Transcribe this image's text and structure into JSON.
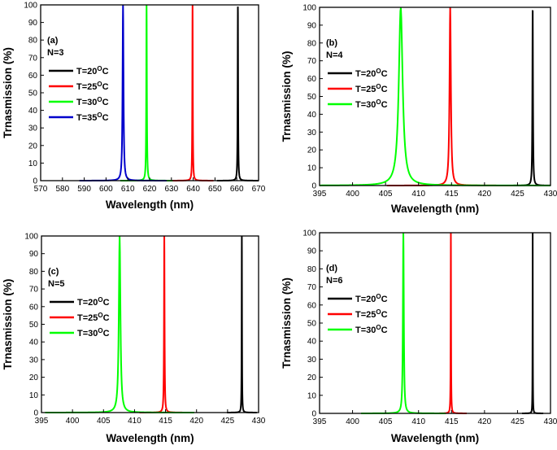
{
  "chart_data": [
    {
      "type": "line",
      "panel_label": "(a)",
      "n_label": "N=3",
      "xlabel": "Wavelength (nm)",
      "ylabel": "Trnasmission (%)",
      "xlim": [
        570,
        670
      ],
      "ylim": [
        0,
        100
      ],
      "xticks": [
        570,
        580,
        590,
        600,
        610,
        620,
        630,
        640,
        650,
        660,
        670
      ],
      "yticks": [
        0,
        10,
        20,
        30,
        40,
        50,
        60,
        70,
        80,
        90,
        100
      ],
      "legend_position": "upper-left",
      "series": [
        {
          "name": "T=20",
          "deg": "O",
          "unit": "C",
          "color": "#000000",
          "peak": 660.5,
          "width": 0.12
        },
        {
          "name": "T=25",
          "deg": "O",
          "unit": "C",
          "color": "#ff0000",
          "peak": 639.7,
          "width": 0.12
        },
        {
          "name": "T=30",
          "deg": "O",
          "unit": "C",
          "color": "#00ff00",
          "peak": 618.6,
          "width": 0.15
        },
        {
          "name": "T=35",
          "deg": "O",
          "unit": "C",
          "color": "#0000cc",
          "peak": 607.8,
          "width": 0.25
        }
      ]
    },
    {
      "type": "line",
      "panel_label": "(b)",
      "n_label": "N=4",
      "xlabel": "Wavelength (nm)",
      "ylabel": "Trnasmission (%)",
      "xlim": [
        395,
        430
      ],
      "ylim": [
        0,
        100
      ],
      "xticks": [
        395,
        400,
        405,
        410,
        415,
        420,
        425,
        430
      ],
      "yticks": [
        0,
        10,
        20,
        30,
        40,
        50,
        60,
        70,
        80,
        90,
        100
      ],
      "legend_position": "upper-left",
      "series": [
        {
          "name": "T=20",
          "deg": "O",
          "unit": "C",
          "color": "#000000",
          "peak": 427.3,
          "width": 0.05
        },
        {
          "name": "T=25",
          "deg": "O",
          "unit": "C",
          "color": "#ff0000",
          "peak": 414.8,
          "width": 0.12
        },
        {
          "name": "T=30",
          "deg": "O",
          "unit": "C",
          "color": "#00ff00",
          "peak": 407.3,
          "width": 0.35
        }
      ]
    },
    {
      "type": "line",
      "panel_label": "(c)",
      "n_label": "N=5",
      "xlabel": "Wavelength (nm)",
      "ylabel": "Trnasmission (%)",
      "xlim": [
        395,
        430
      ],
      "ylim": [
        0,
        100
      ],
      "xticks": [
        395,
        400,
        405,
        410,
        415,
        420,
        425,
        430
      ],
      "yticks": [
        0,
        10,
        20,
        30,
        40,
        50,
        60,
        70,
        80,
        90,
        100
      ],
      "legend_position": "upper-left",
      "series": [
        {
          "name": "T=20",
          "deg": "O",
          "unit": "C",
          "color": "#000000",
          "peak": 427.3,
          "width": 0.03
        },
        {
          "name": "T=25",
          "deg": "O",
          "unit": "C",
          "color": "#ff0000",
          "peak": 414.8,
          "width": 0.05
        },
        {
          "name": "T=30",
          "deg": "O",
          "unit": "C",
          "color": "#00ff00",
          "peak": 407.6,
          "width": 0.15
        }
      ]
    },
    {
      "type": "line",
      "panel_label": "(d)",
      "n_label": "N=6",
      "xlabel": "Wavelength (nm)",
      "ylabel": "Trnasmission (%)",
      "xlim": [
        395,
        430
      ],
      "ylim": [
        0,
        100
      ],
      "xticks": [
        395,
        400,
        405,
        410,
        415,
        420,
        425,
        430
      ],
      "yticks": [
        0,
        10,
        20,
        30,
        40,
        50,
        60,
        70,
        80,
        90,
        100
      ],
      "legend_position": "upper-left",
      "series": [
        {
          "name": "T=20",
          "deg": "O",
          "unit": "C",
          "color": "#000000",
          "peak": 427.3,
          "width": 0.02
        },
        {
          "name": "T=25",
          "deg": "O",
          "unit": "C",
          "color": "#ff0000",
          "peak": 414.9,
          "width": 0.03
        },
        {
          "name": "T=30",
          "deg": "O",
          "unit": "C",
          "color": "#00ff00",
          "peak": 407.7,
          "width": 0.08
        }
      ]
    }
  ]
}
